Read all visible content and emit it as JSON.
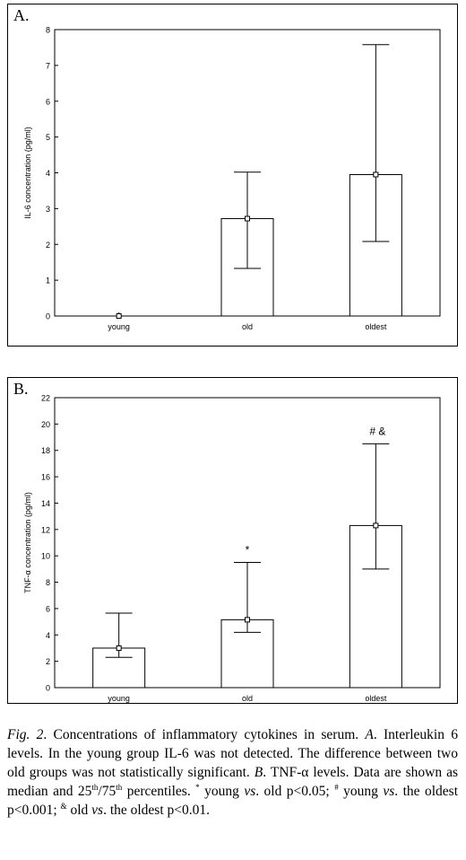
{
  "chart_data": [
    {
      "type": "bar",
      "panel_label": "A.",
      "title": "",
      "xlabel": "",
      "ylabel": "IL-6 concentration (pg/ml)",
      "categories": [
        "young",
        "old",
        "oldest"
      ],
      "median": [
        0,
        2.72,
        3.95
      ],
      "p25": [
        0,
        1.33,
        2.08
      ],
      "p75": [
        0,
        4.02,
        7.58
      ],
      "annotations": [
        "",
        "",
        ""
      ],
      "ylim": [
        0,
        8
      ],
      "yticks": [
        "0",
        "1",
        "2",
        "3",
        "4",
        "5",
        "6",
        "7",
        "8"
      ],
      "grid": false
    },
    {
      "type": "bar",
      "panel_label": "B.",
      "title": "",
      "xlabel": "",
      "ylabel": "TNF-α concentration (pg/ml)",
      "categories": [
        "young",
        "old",
        "oldest"
      ],
      "median": [
        3.0,
        5.15,
        12.3
      ],
      "p25": [
        2.3,
        4.2,
        9.0
      ],
      "p75": [
        5.65,
        9.5,
        18.5
      ],
      "annotations": [
        "",
        "*",
        "#   &"
      ],
      "ylim": [
        0,
        22
      ],
      "yticks": [
        "0",
        "2",
        "4",
        "6",
        "8",
        "10",
        "12",
        "14",
        "16",
        "18",
        "20",
        "22"
      ],
      "grid": false
    }
  ],
  "caption": {
    "fig": "Fig. 2",
    "text_1": ". Concentrations of inflammatory cytokines in serum. ",
    "a": "A",
    "text_2": ". Interleukin 6 levels. In the young group IL-6 was not detected. The difference between two old groups was not statistically significant. ",
    "b": "B",
    "text_3": ". TNF-α levels. Data are shown as median and 25",
    "sup_th1": "th",
    "text_4": "/75",
    "sup_th2": "th",
    "text_5": " percentiles. ",
    "sup_star": "*",
    "text_6": " young ",
    "vs1": "vs",
    "text_7": ". old p<0.05; ",
    "sup_hash": "#",
    "text_8": " young ",
    "vs2": "vs",
    "text_9": ". the oldest p<0.001; ",
    "sup_amp": "&",
    "text_10": " old ",
    "vs3": "vs",
    "text_11": ". the oldest p<0.01."
  }
}
